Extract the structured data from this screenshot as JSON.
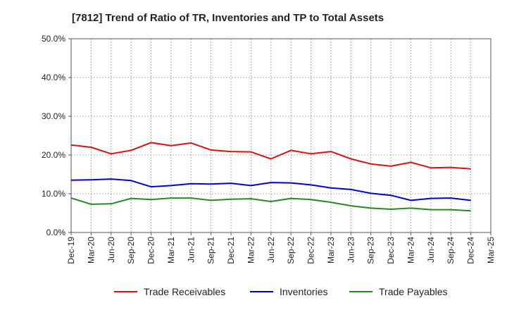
{
  "chart_data": {
    "type": "line",
    "title": "[7812]  Trend of Ratio of TR, Inventories and TP to Total Assets",
    "xlabel": "",
    "ylabel": "",
    "ylim": [
      0,
      50
    ],
    "y_ticks": [
      0,
      10,
      20,
      30,
      40,
      50
    ],
    "y_tick_labels": [
      "0.0%",
      "10.0%",
      "20.0%",
      "30.0%",
      "40.0%",
      "50.0%"
    ],
    "x_tick_labels": [
      "Dec-19",
      "Mar-20",
      "Jun-20",
      "Sep-20",
      "Dec-20",
      "Mar-21",
      "Jun-21",
      "Sep-21",
      "Dec-21",
      "Mar-22",
      "Jun-22",
      "Sep-22",
      "Dec-22",
      "Mar-23",
      "Jun-23",
      "Sep-23",
      "Dec-23",
      "Mar-24",
      "Jun-24",
      "Sep-24",
      "Dec-24",
      "Mar-25"
    ],
    "x": [
      "Dec-19",
      "Mar-20",
      "Jun-20",
      "Sep-20",
      "Dec-20",
      "Mar-21",
      "Jun-21",
      "Sep-21",
      "Dec-21",
      "Mar-22",
      "Jun-22",
      "Sep-22",
      "Dec-22",
      "Mar-23",
      "Jun-23",
      "Sep-23",
      "Dec-23",
      "Mar-24",
      "Jun-24",
      "Sep-24",
      "Dec-24"
    ],
    "grid": true,
    "legend_position": "bottom",
    "series": [
      {
        "name": "Trade Receivables",
        "color": "#dd1111",
        "values": [
          22.6,
          22.0,
          20.3,
          21.2,
          23.2,
          22.4,
          23.1,
          21.3,
          20.9,
          20.8,
          19.0,
          21.2,
          20.3,
          20.9,
          19.0,
          17.7,
          17.1,
          18.1,
          16.7,
          16.8,
          16.4
        ]
      },
      {
        "name": "Inventories",
        "color": "#0000dd",
        "values": [
          13.5,
          13.6,
          13.8,
          13.4,
          11.8,
          12.1,
          12.6,
          12.5,
          12.7,
          12.1,
          12.9,
          12.8,
          12.3,
          11.5,
          11.1,
          10.1,
          9.6,
          8.3,
          8.8,
          8.9,
          8.3
        ]
      },
      {
        "name": "Trade Payables",
        "color": "#228b22",
        "values": [
          8.9,
          7.3,
          7.4,
          8.8,
          8.5,
          8.9,
          8.9,
          8.3,
          8.6,
          8.7,
          8.0,
          8.8,
          8.5,
          7.8,
          6.9,
          6.3,
          6.0,
          6.3,
          5.9,
          5.9,
          5.6
        ]
      }
    ]
  }
}
